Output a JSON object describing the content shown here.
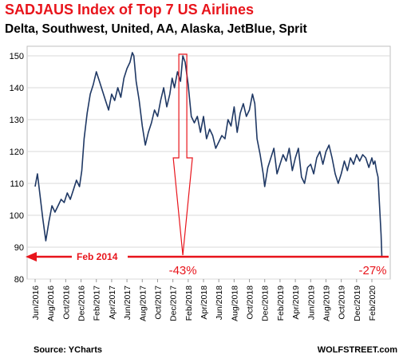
{
  "chart_data": {
    "type": "line",
    "title": "SADJAUS Index of Top 7 US Airlines",
    "subtitle": "Delta, Southwest, United, AA, Alaska, JetBlue, Sprit",
    "xlabel": "",
    "ylabel": "",
    "ylim": [
      80,
      153
    ],
    "yticks": [
      80,
      90,
      100,
      110,
      120,
      130,
      140,
      150
    ],
    "xticks": [
      "Jun/2016",
      "Aug/2016",
      "Oct/2016",
      "Dec/2016",
      "Feb/2017",
      "Apr/2017",
      "Jun/2017",
      "Aug/2017",
      "Oct/2017",
      "Dec/2017",
      "Feb/2018",
      "Apr/2018",
      "Jun/2018",
      "Aug/2018",
      "Oct/2018",
      "Dec/2018",
      "Feb/2019",
      "Apr/2019",
      "Jun/2019",
      "Aug/2019",
      "Oct/2019",
      "Dec/2019",
      "Feb/2020"
    ],
    "grid": "horizontal",
    "legend": "none",
    "series": [
      {
        "color": "#1f3864",
        "points": [
          [
            0.0,
            109
          ],
          [
            0.15,
            113
          ],
          [
            0.3,
            107
          ],
          [
            0.5,
            99
          ],
          [
            0.7,
            92
          ],
          [
            0.9,
            98
          ],
          [
            1.1,
            103
          ],
          [
            1.3,
            101
          ],
          [
            1.5,
            103
          ],
          [
            1.7,
            105
          ],
          [
            1.9,
            104
          ],
          [
            2.1,
            107
          ],
          [
            2.3,
            105
          ],
          [
            2.5,
            108
          ],
          [
            2.7,
            111
          ],
          [
            2.9,
            109
          ],
          [
            3.05,
            114
          ],
          [
            3.2,
            124
          ],
          [
            3.4,
            132
          ],
          [
            3.6,
            138
          ],
          [
            3.8,
            141
          ],
          [
            4.0,
            145
          ],
          [
            4.2,
            142
          ],
          [
            4.4,
            139
          ],
          [
            4.6,
            136
          ],
          [
            4.8,
            133
          ],
          [
            5.0,
            138
          ],
          [
            5.2,
            136
          ],
          [
            5.4,
            140
          ],
          [
            5.6,
            137
          ],
          [
            5.8,
            143
          ],
          [
            6.0,
            146
          ],
          [
            6.2,
            148
          ],
          [
            6.35,
            151
          ],
          [
            6.45,
            150
          ],
          [
            6.6,
            142
          ],
          [
            6.8,
            136
          ],
          [
            7.0,
            128
          ],
          [
            7.2,
            122
          ],
          [
            7.4,
            126
          ],
          [
            7.6,
            129
          ],
          [
            7.8,
            133
          ],
          [
            8.0,
            131
          ],
          [
            8.2,
            136
          ],
          [
            8.4,
            140
          ],
          [
            8.6,
            134
          ],
          [
            8.8,
            138
          ],
          [
            8.95,
            143
          ],
          [
            9.1,
            140
          ],
          [
            9.3,
            145
          ],
          [
            9.5,
            142
          ],
          [
            9.65,
            150
          ],
          [
            9.8,
            148
          ],
          [
            10.0,
            141
          ],
          [
            10.2,
            131
          ],
          [
            10.4,
            129
          ],
          [
            10.6,
            131
          ],
          [
            10.8,
            126
          ],
          [
            11.0,
            131
          ],
          [
            11.2,
            124
          ],
          [
            11.4,
            127
          ],
          [
            11.6,
            125
          ],
          [
            11.8,
            121
          ],
          [
            12.0,
            123
          ],
          [
            12.2,
            125
          ],
          [
            12.4,
            124
          ],
          [
            12.6,
            130
          ],
          [
            12.8,
            128
          ],
          [
            13.0,
            134
          ],
          [
            13.2,
            126
          ],
          [
            13.4,
            132
          ],
          [
            13.6,
            135
          ],
          [
            13.8,
            131
          ],
          [
            14.0,
            133
          ],
          [
            14.2,
            138
          ],
          [
            14.35,
            135
          ],
          [
            14.5,
            124
          ],
          [
            14.7,
            119
          ],
          [
            14.9,
            113
          ],
          [
            15.0,
            109
          ],
          [
            15.2,
            115
          ],
          [
            15.4,
            118
          ],
          [
            15.6,
            121
          ],
          [
            15.8,
            113
          ],
          [
            16.0,
            116
          ],
          [
            16.2,
            119
          ],
          [
            16.4,
            117
          ],
          [
            16.6,
            121
          ],
          [
            16.8,
            114
          ],
          [
            17.0,
            118
          ],
          [
            17.2,
            121
          ],
          [
            17.4,
            112
          ],
          [
            17.6,
            110
          ],
          [
            17.8,
            115
          ],
          [
            18.0,
            116
          ],
          [
            18.2,
            113
          ],
          [
            18.4,
            118
          ],
          [
            18.6,
            120
          ],
          [
            18.8,
            116
          ],
          [
            19.0,
            120
          ],
          [
            19.2,
            122
          ],
          [
            19.4,
            118
          ],
          [
            19.6,
            113
          ],
          [
            19.8,
            110
          ],
          [
            20.0,
            113
          ],
          [
            20.2,
            117
          ],
          [
            20.4,
            114
          ],
          [
            20.6,
            118
          ],
          [
            20.8,
            116
          ],
          [
            21.0,
            119
          ],
          [
            21.2,
            117
          ],
          [
            21.4,
            119
          ],
          [
            21.6,
            118
          ],
          [
            21.8,
            115
          ],
          [
            22.0,
            118
          ],
          [
            22.1,
            116
          ],
          [
            22.2,
            117
          ],
          [
            22.3,
            114
          ],
          [
            22.4,
            112
          ],
          [
            22.5,
            103
          ],
          [
            22.6,
            94
          ],
          [
            22.65,
            87
          ]
        ]
      }
    ],
    "annotations": {
      "peak_label": "-43%",
      "end_label": "-27%",
      "reference_label": "Feb 2014",
      "reference_value": 87
    },
    "source": "Source: YCharts",
    "watermark": "WOLFSTREET.com"
  }
}
